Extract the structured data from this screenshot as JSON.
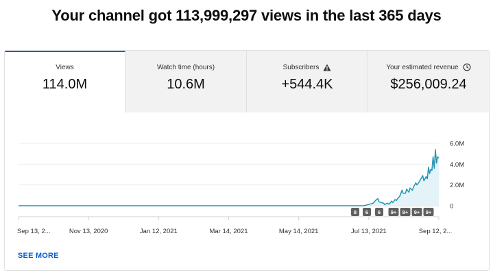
{
  "headline": "Your channel got 113,999,297 views in the last 365 days",
  "tabs": [
    {
      "label": "Views",
      "value": "114.0M",
      "icon": null,
      "active": true
    },
    {
      "label": "Watch time (hours)",
      "value": "10.6M",
      "icon": null,
      "active": false
    },
    {
      "label": "Subscribers",
      "value": "+544.4K",
      "icon": "warning-icon",
      "active": false
    },
    {
      "label": "Your estimated revenue",
      "value": "$256,009.24",
      "icon": "clock-icon",
      "active": false
    }
  ],
  "see_more": "SEE MORE",
  "colors": {
    "line": "#2793b4",
    "fill": "#e3f3f8",
    "accent": "#065fd4",
    "badge": "#606060"
  },
  "chart_data": {
    "type": "area",
    "x_tick_labels": [
      "Sep 13, 2...",
      "Nov 13, 2020",
      "Jan 12, 2021",
      "Mar 14, 2021",
      "May 14, 2021",
      "Jul 13, 2021",
      "Sep 12, 2..."
    ],
    "y_tick_labels": [
      "6.0M",
      "4.0M",
      "2.0M",
      "0"
    ],
    "ylim": [
      0,
      6000000
    ],
    "x_range_days": [
      0,
      365
    ],
    "grid": true,
    "badges": [
      "8",
      "6",
      "6",
      "9+",
      "9+",
      "9+",
      "9+"
    ],
    "series": [
      {
        "x": [
          0,
          100,
          200,
          300,
          305,
          308,
          310,
          312,
          313,
          315,
          317,
          318,
          320,
          322,
          324,
          325,
          327,
          328,
          330,
          331,
          333,
          334,
          336,
          337,
          339,
          340,
          342,
          343,
          345,
          346,
          348,
          349,
          351,
          352,
          354,
          355,
          356,
          357,
          358,
          359,
          360,
          361,
          362,
          363,
          364,
          365
        ],
        "values": [
          0,
          0,
          0,
          0,
          150000,
          250000,
          500000,
          700000,
          400000,
          300000,
          250000,
          100000,
          250000,
          150000,
          450000,
          300000,
          600000,
          500000,
          800000,
          900000,
          1500000,
          1200000,
          1200000,
          1600000,
          1300000,
          1700000,
          1500000,
          1800000,
          2200000,
          2000000,
          2300000,
          2500000,
          2900000,
          2400000,
          2800000,
          2600000,
          3700000,
          3100000,
          3500000,
          3400000,
          4700000,
          3600000,
          5400000,
          4100000,
          4700000,
          4600000
        ]
      }
    ]
  }
}
